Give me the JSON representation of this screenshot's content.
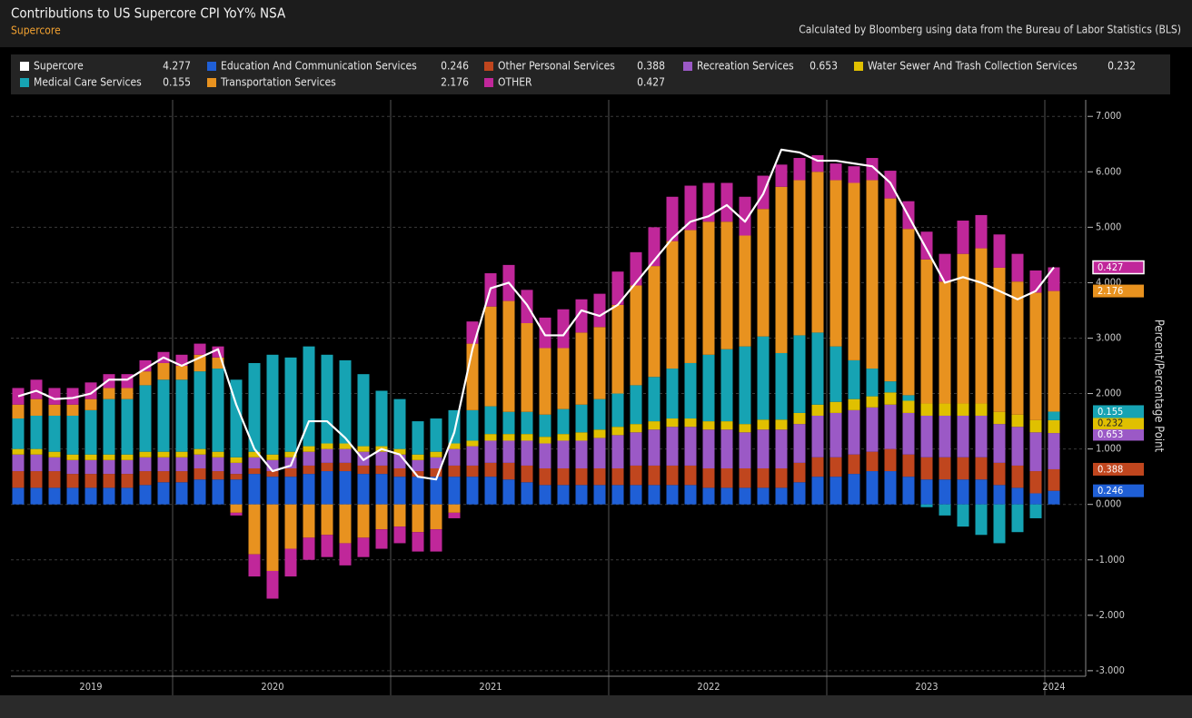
{
  "chart_data": {
    "type": "bar",
    "stacked": true,
    "title": "Contributions to US Supercore CPI YoY% NSA",
    "subtitle": "Supercore",
    "note": "Calculated by Bloomberg using data from the Bureau of Labor Statistics (BLS)",
    "ylabel": "Percent/Percentage Point",
    "grid": true,
    "ylim": [
      -3.1,
      7.2
    ],
    "yticks": [
      {
        "value": 7,
        "label": "7.000"
      },
      {
        "value": 6,
        "label": "6.000"
      },
      {
        "value": 5,
        "label": "5.000"
      },
      {
        "value": 4,
        "label": "4.000"
      },
      {
        "value": 3,
        "label": "3.000"
      },
      {
        "value": 2,
        "label": "2.000"
      },
      {
        "value": 1,
        "label": "1.000"
      },
      {
        "value": 0,
        "label": "0.000"
      },
      {
        "value": -1,
        "label": "-1.000"
      },
      {
        "value": -2,
        "label": "-2.000"
      },
      {
        "value": -3,
        "label": "-3.000"
      }
    ],
    "categories": [
      null,
      null,
      null,
      null,
      "2019",
      null,
      null,
      null,
      null,
      null,
      null,
      null,
      null,
      null,
      "2020",
      null,
      null,
      null,
      null,
      null,
      null,
      null,
      null,
      null,
      null,
      null,
      "2021",
      null,
      null,
      null,
      null,
      null,
      null,
      null,
      null,
      null,
      null,
      null,
      "2022",
      null,
      null,
      null,
      null,
      null,
      null,
      null,
      null,
      null,
      null,
      null,
      "2023",
      null,
      null,
      null,
      null,
      null,
      null,
      "2024"
    ],
    "series": [
      {
        "name": "Supercore",
        "type": "line",
        "color": "#ffffff",
        "values": [
          1.95,
          2.05,
          1.9,
          1.92,
          2.0,
          2.25,
          2.25,
          2.45,
          2.65,
          2.5,
          2.65,
          2.8,
          1.8,
          1.0,
          0.6,
          0.7,
          1.5,
          1.5,
          1.2,
          0.8,
          1.0,
          0.9,
          0.5,
          0.45,
          1.3,
          2.8,
          3.9,
          4.0,
          3.6,
          3.05,
          3.05,
          3.5,
          3.4,
          3.6,
          4.0,
          4.4,
          4.8,
          5.1,
          5.2,
          5.4,
          5.1,
          5.6,
          6.4,
          6.35,
          6.2,
          6.2,
          6.15,
          6.1,
          5.8,
          5.2,
          4.6,
          4.0,
          4.1,
          4.0,
          3.85,
          3.7,
          3.85,
          4.277
        ]
      },
      {
        "name": "Education And Communication Services",
        "color": "#1f5fd6",
        "values": [
          0.3,
          0.3,
          0.3,
          0.3,
          0.3,
          0.3,
          0.3,
          0.35,
          0.4,
          0.4,
          0.45,
          0.45,
          0.45,
          0.55,
          0.5,
          0.5,
          0.55,
          0.6,
          0.6,
          0.55,
          0.55,
          0.5,
          0.5,
          0.5,
          0.5,
          0.5,
          0.5,
          0.45,
          0.4,
          0.35,
          0.35,
          0.35,
          0.35,
          0.35,
          0.35,
          0.35,
          0.35,
          0.35,
          0.3,
          0.3,
          0.3,
          0.3,
          0.3,
          0.4,
          0.5,
          0.5,
          0.55,
          0.6,
          0.6,
          0.5,
          0.45,
          0.45,
          0.45,
          0.45,
          0.35,
          0.3,
          0.2,
          0.246
        ]
      },
      {
        "name": "Other Personal Services",
        "color": "#c0461e",
        "values": [
          0.3,
          0.3,
          0.3,
          0.25,
          0.25,
          0.25,
          0.25,
          0.25,
          0.2,
          0.2,
          0.2,
          0.15,
          0.1,
          0.1,
          0.1,
          0.15,
          0.15,
          0.15,
          0.15,
          0.15,
          0.15,
          0.15,
          0.1,
          0.15,
          0.2,
          0.2,
          0.25,
          0.3,
          0.3,
          0.3,
          0.3,
          0.3,
          0.3,
          0.3,
          0.35,
          0.35,
          0.35,
          0.35,
          0.35,
          0.35,
          0.35,
          0.35,
          0.35,
          0.35,
          0.35,
          0.35,
          0.35,
          0.35,
          0.4,
          0.4,
          0.4,
          0.4,
          0.4,
          0.4,
          0.4,
          0.4,
          0.4,
          0.388
        ]
      },
      {
        "name": "Recreation Services",
        "color": "#9b59c6",
        "values": [
          0.3,
          0.3,
          0.25,
          0.25,
          0.25,
          0.25,
          0.25,
          0.25,
          0.25,
          0.25,
          0.25,
          0.25,
          0.2,
          0.2,
          0.2,
          0.2,
          0.25,
          0.25,
          0.25,
          0.25,
          0.25,
          0.25,
          0.2,
          0.2,
          0.3,
          0.35,
          0.4,
          0.4,
          0.45,
          0.45,
          0.5,
          0.5,
          0.55,
          0.6,
          0.6,
          0.65,
          0.7,
          0.7,
          0.7,
          0.7,
          0.65,
          0.7,
          0.7,
          0.7,
          0.75,
          0.8,
          0.8,
          0.8,
          0.8,
          0.75,
          0.75,
          0.75,
          0.75,
          0.75,
          0.7,
          0.7,
          0.7,
          0.653
        ]
      },
      {
        "name": "Water Sewer And Trash Collection Services",
        "color": "#e0c000",
        "values": [
          0.1,
          0.1,
          0.1,
          0.1,
          0.1,
          0.1,
          0.1,
          0.1,
          0.1,
          0.1,
          0.1,
          0.1,
          0.1,
          0.1,
          0.1,
          0.1,
          0.1,
          0.1,
          0.1,
          0.1,
          0.1,
          0.1,
          0.1,
          0.1,
          0.1,
          0.1,
          0.12,
          0.12,
          0.12,
          0.12,
          0.12,
          0.15,
          0.15,
          0.15,
          0.15,
          0.15,
          0.15,
          0.15,
          0.15,
          0.15,
          0.15,
          0.18,
          0.18,
          0.2,
          0.2,
          0.2,
          0.2,
          0.2,
          0.22,
          0.22,
          0.22,
          0.22,
          0.22,
          0.22,
          0.22,
          0.22,
          0.22,
          0.232
        ]
      },
      {
        "name": "Medical Care Services",
        "color": "#16a3b3",
        "values": [
          0.55,
          0.6,
          0.65,
          0.7,
          0.8,
          1.0,
          1.0,
          1.2,
          1.3,
          1.3,
          1.4,
          1.5,
          1.4,
          1.6,
          1.8,
          1.7,
          1.8,
          1.6,
          1.5,
          1.3,
          1.0,
          0.9,
          0.6,
          0.6,
          0.6,
          0.55,
          0.5,
          0.4,
          0.4,
          0.4,
          0.45,
          0.5,
          0.55,
          0.6,
          0.7,
          0.8,
          0.9,
          1.0,
          1.2,
          1.3,
          1.4,
          1.5,
          1.2,
          1.4,
          1.3,
          1.0,
          0.7,
          0.5,
          0.2,
          0.1,
          -0.05,
          -0.2,
          -0.4,
          -0.55,
          -0.7,
          -0.5,
          -0.25,
          0.155
        ]
      },
      {
        "name": "Transportation Services",
        "color": "#e8921f",
        "values": [
          0.25,
          0.3,
          0.2,
          0.2,
          0.2,
          0.2,
          0.2,
          0.25,
          0.3,
          0.25,
          0.3,
          0.2,
          -0.15,
          -0.9,
          -1.2,
          -0.8,
          -0.6,
          -0.55,
          -0.7,
          -0.6,
          -0.45,
          -0.4,
          -0.5,
          -0.45,
          -0.15,
          1.2,
          1.8,
          2.0,
          1.6,
          1.2,
          1.1,
          1.3,
          1.3,
          1.6,
          1.8,
          2.0,
          2.3,
          2.4,
          2.4,
          2.3,
          2.0,
          2.3,
          3.0,
          2.8,
          2.9,
          3.0,
          3.2,
          3.4,
          3.3,
          3.0,
          2.6,
          2.2,
          2.7,
          2.8,
          2.6,
          2.4,
          2.3,
          2.176
        ]
      },
      {
        "name": "OTHER",
        "color": "#c0279a",
        "values": [
          0.3,
          0.35,
          0.3,
          0.3,
          0.3,
          0.25,
          0.25,
          0.2,
          0.2,
          0.2,
          0.2,
          0.2,
          -0.05,
          -0.4,
          -0.5,
          -0.5,
          -0.4,
          -0.4,
          -0.4,
          -0.35,
          -0.35,
          -0.3,
          -0.35,
          -0.4,
          -0.1,
          0.4,
          0.6,
          0.65,
          0.6,
          0.55,
          0.7,
          0.6,
          0.6,
          0.6,
          0.6,
          0.7,
          0.8,
          0.8,
          0.7,
          0.7,
          0.7,
          0.6,
          0.4,
          0.4,
          0.3,
          0.3,
          0.3,
          0.4,
          0.5,
          0.5,
          0.5,
          0.5,
          0.6,
          0.6,
          0.6,
          0.5,
          0.4,
          0.427
        ]
      }
    ]
  }
}
